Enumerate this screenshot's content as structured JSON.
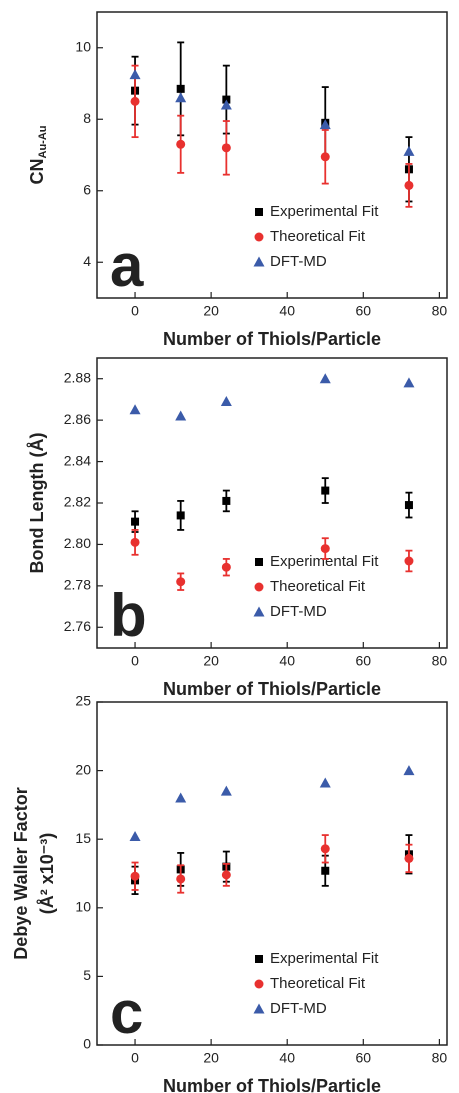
{
  "chart_data": [
    {
      "type": "scatter",
      "panel_label": "a",
      "x_label": "Number of Thiols/Particle",
      "y_label": "CN",
      "y_label_sub": "Au-Au",
      "x": [
        0,
        12,
        24,
        50,
        72
      ],
      "xlim": [
        -10,
        82
      ],
      "xticks": [
        0,
        20,
        40,
        60,
        80
      ],
      "ylim": [
        3,
        11
      ],
      "yticks": [
        4,
        6,
        8,
        10
      ],
      "series": [
        {
          "name": "Experimental Fit",
          "color": "#000000",
          "marker": "square",
          "values": [
            8.8,
            8.85,
            8.55,
            7.9,
            6.6
          ],
          "errors": [
            0.95,
            1.3,
            0.95,
            1.0,
            0.9
          ]
        },
        {
          "name": "Theoretical Fit",
          "color": "#e8312f",
          "marker": "circle",
          "values": [
            8.5,
            7.3,
            7.2,
            6.95,
            6.15
          ],
          "errors": [
            1.0,
            0.8,
            0.75,
            0.75,
            0.6
          ]
        },
        {
          "name": "DFT-MD",
          "color": "#3b5ba9",
          "marker": "triangle",
          "values": [
            9.25,
            8.6,
            8.4,
            7.85,
            7.1
          ]
        }
      ]
    },
    {
      "type": "scatter",
      "panel_label": "b",
      "x_label": "Number of Thiols/Particle",
      "y_label": "Bond Length (Å)",
      "x": [
        0,
        12,
        24,
        50,
        72
      ],
      "xlim": [
        -10,
        82
      ],
      "xticks": [
        0,
        20,
        40,
        60,
        80
      ],
      "ylim": [
        2.75,
        2.89
      ],
      "yticks": [
        2.76,
        2.78,
        {
          "value": 2.8,
          "label": "2.80"
        },
        2.82,
        2.84,
        2.86,
        2.88
      ],
      "series": [
        {
          "name": "Experimental Fit",
          "color": "#000000",
          "marker": "square",
          "values": [
            2.811,
            2.814,
            2.821,
            2.826,
            2.819
          ],
          "errors": [
            0.005,
            0.007,
            0.005,
            0.006,
            0.006
          ]
        },
        {
          "name": "Theoretical Fit",
          "color": "#e8312f",
          "marker": "circle",
          "values": [
            2.801,
            2.782,
            2.789,
            2.798,
            2.792
          ],
          "errors": [
            0.006,
            0.004,
            0.004,
            0.005,
            0.005
          ]
        },
        {
          "name": "DFT-MD",
          "color": "#3b5ba9",
          "marker": "triangle",
          "values": [
            2.865,
            2.862,
            2.869,
            2.88,
            2.878
          ]
        }
      ]
    },
    {
      "type": "scatter",
      "panel_label": "c",
      "x_label": "Number of Thiols/Particle",
      "y_label": "Debye Waller Factor",
      "y_label2": "(Å² x10⁻³)",
      "x": [
        0,
        12,
        24,
        50,
        72
      ],
      "xlim": [
        -10,
        82
      ],
      "xticks": [
        0,
        20,
        40,
        60,
        80
      ],
      "ylim": [
        0,
        25
      ],
      "yticks": [
        0,
        5,
        10,
        15,
        20,
        25
      ],
      "series": [
        {
          "name": "Experimental Fit",
          "color": "#000000",
          "marker": "square",
          "values": [
            12.0,
            12.8,
            13.0,
            12.7,
            13.9
          ],
          "errors": [
            1.0,
            1.2,
            1.1,
            1.1,
            1.4
          ]
        },
        {
          "name": "Theoretical Fit",
          "color": "#e8312f",
          "marker": "circle",
          "values": [
            12.3,
            12.1,
            12.4,
            14.3,
            13.6
          ],
          "errors": [
            1.0,
            1.0,
            0.8,
            1.0,
            1.0
          ]
        },
        {
          "name": "DFT-MD",
          "color": "#3b5ba9",
          "marker": "triangle",
          "values": [
            15.2,
            18.0,
            18.5,
            19.1,
            20.0
          ]
        }
      ]
    }
  ]
}
